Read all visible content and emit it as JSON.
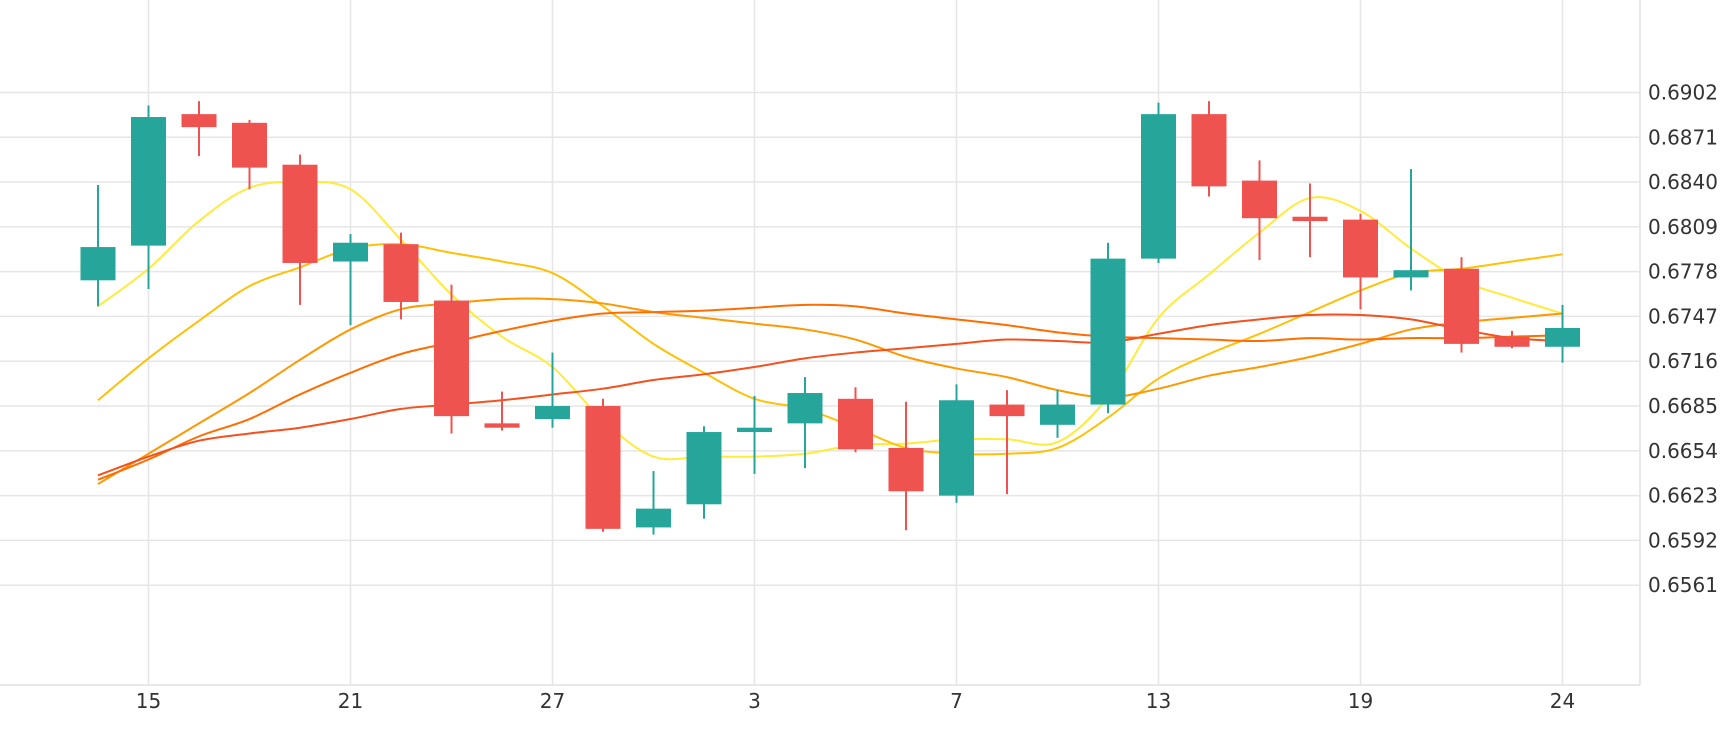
{
  "chart_data": {
    "type": "candlestick",
    "title": "",
    "xlabel": "",
    "ylabel": "",
    "ylim": [
      0.653,
      0.693
    ],
    "grid": true,
    "y_ticks": [
      "0.6902",
      "0.6871",
      "0.6840",
      "0.6809",
      "0.6778",
      "0.6747",
      "0.6716",
      "0.6685",
      "0.6654",
      "0.6623",
      "0.6592",
      "0.6561"
    ],
    "x_ticks": [
      {
        "label": "15",
        "candle_index": 1
      },
      {
        "label": "21",
        "candle_index": 5
      },
      {
        "label": "27",
        "candle_index": 9
      },
      {
        "label": "3",
        "candle_index": 13
      },
      {
        "label": "7",
        "candle_index": 17
      },
      {
        "label": "13",
        "candle_index": 21
      },
      {
        "label": "19",
        "candle_index": 25
      },
      {
        "label": "24",
        "candle_index": 29
      }
    ],
    "colors": {
      "up": "#26a69a",
      "down": "#ef5350"
    },
    "candles": [
      {
        "open": 0.6772,
        "high": 0.6838,
        "low": 0.6754,
        "close": 0.6795
      },
      {
        "open": 0.6796,
        "high": 0.6893,
        "low": 0.6766,
        "close": 0.6885
      },
      {
        "open": 0.6887,
        "high": 0.6896,
        "low": 0.6858,
        "close": 0.6878
      },
      {
        "open": 0.6881,
        "high": 0.6883,
        "low": 0.6835,
        "close": 0.685
      },
      {
        "open": 0.6852,
        "high": 0.6859,
        "low": 0.6755,
        "close": 0.6784
      },
      {
        "open": 0.6785,
        "high": 0.6804,
        "low": 0.6741,
        "close": 0.6798
      },
      {
        "open": 0.6797,
        "high": 0.6805,
        "low": 0.6745,
        "close": 0.6757
      },
      {
        "open": 0.6758,
        "high": 0.6769,
        "low": 0.6666,
        "close": 0.6678
      },
      {
        "open": 0.6673,
        "high": 0.6695,
        "low": 0.6668,
        "close": 0.667
      },
      {
        "open": 0.6676,
        "high": 0.6722,
        "low": 0.667,
        "close": 0.6685
      },
      {
        "open": 0.6685,
        "high": 0.669,
        "low": 0.6598,
        "close": 0.66
      },
      {
        "open": 0.6601,
        "high": 0.664,
        "low": 0.6596,
        "close": 0.6614
      },
      {
        "open": 0.6617,
        "high": 0.6671,
        "low": 0.6607,
        "close": 0.6667
      },
      {
        "open": 0.6667,
        "high": 0.6692,
        "low": 0.6638,
        "close": 0.667
      },
      {
        "open": 0.6673,
        "high": 0.6705,
        "low": 0.6642,
        "close": 0.6694
      },
      {
        "open": 0.669,
        "high": 0.6698,
        "low": 0.6653,
        "close": 0.6655
      },
      {
        "open": 0.6656,
        "high": 0.6688,
        "low": 0.6599,
        "close": 0.6626
      },
      {
        "open": 0.6623,
        "high": 0.67,
        "low": 0.6618,
        "close": 0.6689
      },
      {
        "open": 0.6686,
        "high": 0.6696,
        "low": 0.6624,
        "close": 0.6678
      },
      {
        "open": 0.6672,
        "high": 0.6696,
        "low": 0.6663,
        "close": 0.6686
      },
      {
        "open": 0.6686,
        "high": 0.6798,
        "low": 0.668,
        "close": 0.6787
      },
      {
        "open": 0.6787,
        "high": 0.6895,
        "low": 0.6784,
        "close": 0.6887
      },
      {
        "open": 0.6887,
        "high": 0.6896,
        "low": 0.683,
        "close": 0.6837
      },
      {
        "open": 0.6841,
        "high": 0.6855,
        "low": 0.6786,
        "close": 0.6815
      },
      {
        "open": 0.6816,
        "high": 0.6839,
        "low": 0.6788,
        "close": 0.6813
      },
      {
        "open": 0.6814,
        "high": 0.6818,
        "low": 0.6752,
        "close": 0.6774
      },
      {
        "open": 0.6774,
        "high": 0.6849,
        "low": 0.6765,
        "close": 0.6779
      },
      {
        "open": 0.678,
        "high": 0.6788,
        "low": 0.6722,
        "close": 0.6728
      },
      {
        "open": 0.6733,
        "high": 0.6737,
        "low": 0.6725,
        "close": 0.6726
      },
      {
        "open": 0.6726,
        "high": 0.6755,
        "low": 0.6715,
        "close": 0.6739
      }
    ],
    "overlay_lines": [
      {
        "color": "#ffeb3b",
        "values": [
          0.6754,
          0.678,
          0.6813,
          0.6836,
          0.684,
          0.6835,
          0.68,
          0.6762,
          0.6733,
          0.6712,
          0.6675,
          0.665,
          0.665,
          0.665,
          0.6652,
          0.6658,
          0.6659,
          0.6662,
          0.6662,
          0.666,
          0.6691,
          0.6746,
          0.6776,
          0.6805,
          0.6829,
          0.682,
          0.6794,
          0.6772,
          0.676,
          0.6749
        ]
      },
      {
        "color": "#ffc107",
        "values": [
          0.6689,
          0.6718,
          0.6744,
          0.6768,
          0.6781,
          0.6794,
          0.6797,
          0.6791,
          0.6785,
          0.6777,
          0.6754,
          0.6728,
          0.6708,
          0.669,
          0.6683,
          0.667,
          0.6656,
          0.6652,
          0.6652,
          0.6656,
          0.6677,
          0.6704,
          0.6721,
          0.6735,
          0.675,
          0.6765,
          0.6777,
          0.678,
          0.6785,
          0.679
        ]
      },
      {
        "color": "#ff9800",
        "values": [
          0.6631,
          0.6652,
          0.6673,
          0.6694,
          0.6717,
          0.6738,
          0.6752,
          0.6756,
          0.6759,
          0.6759,
          0.6756,
          0.675,
          0.6746,
          0.6742,
          0.6738,
          0.6731,
          0.6719,
          0.6711,
          0.6705,
          0.6696,
          0.6691,
          0.6697,
          0.6706,
          0.6712,
          0.6719,
          0.6728,
          0.6738,
          0.6743,
          0.6746,
          0.6749
        ]
      },
      {
        "color": "#ff6d00",
        "values": [
          0.6634,
          0.6648,
          0.6664,
          0.6676,
          0.6693,
          0.6708,
          0.6721,
          0.6729,
          0.6737,
          0.6744,
          0.6749,
          0.675,
          0.6751,
          0.6753,
          0.6755,
          0.6754,
          0.6749,
          0.6745,
          0.6741,
          0.6736,
          0.6733,
          0.6732,
          0.6731,
          0.673,
          0.6732,
          0.6731,
          0.6732,
          0.6732,
          0.6733,
          0.6734
        ]
      },
      {
        "color": "#f4511e",
        "values": [
          0.6637,
          0.665,
          0.6661,
          0.6666,
          0.667,
          0.6676,
          0.6683,
          0.6686,
          0.6689,
          0.6693,
          0.6697,
          0.6703,
          0.6707,
          0.6712,
          0.6718,
          0.6722,
          0.6725,
          0.6728,
          0.6731,
          0.673,
          0.6729,
          0.6735,
          0.6741,
          0.6745,
          0.6748,
          0.6748,
          0.6745,
          0.6738,
          0.6732,
          0.673
        ]
      }
    ]
  }
}
